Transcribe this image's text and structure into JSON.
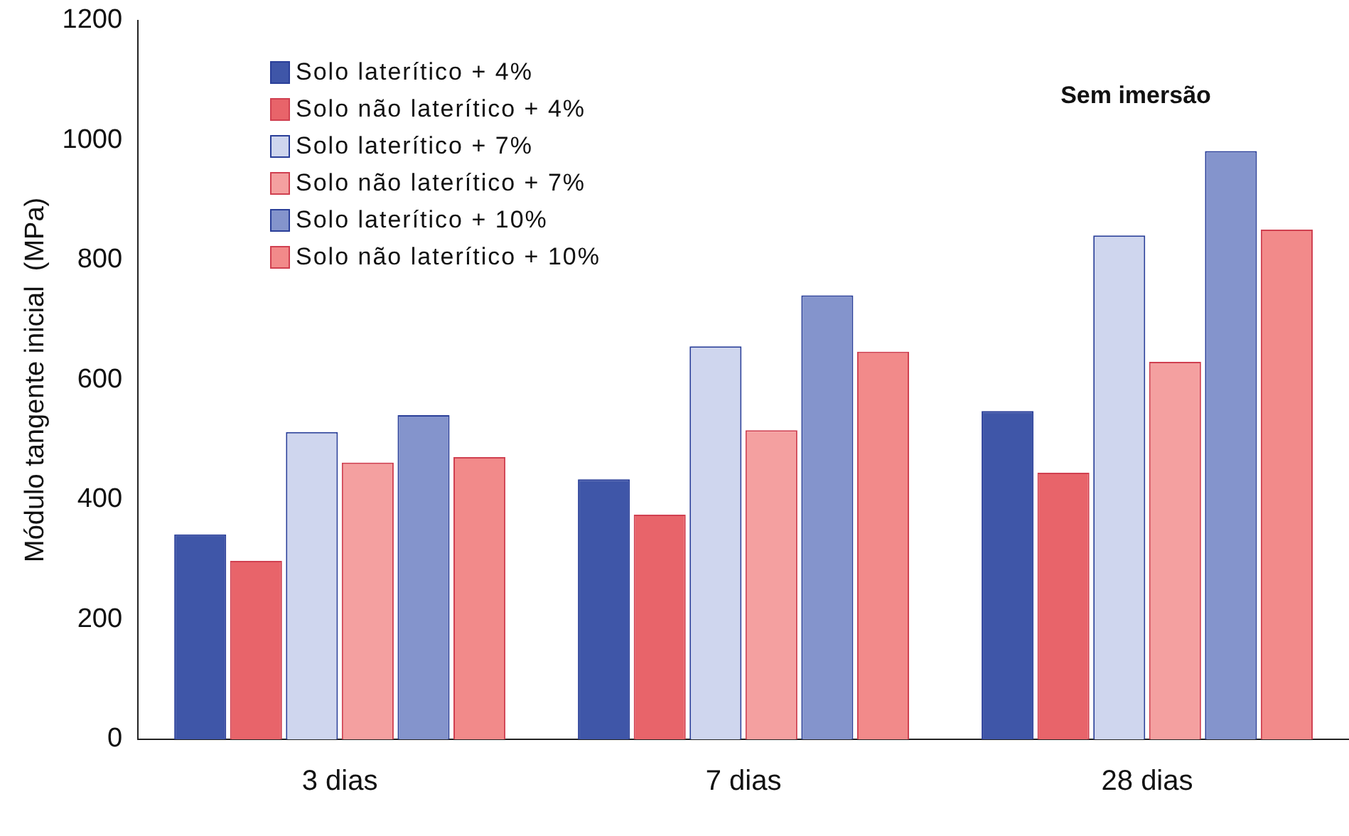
{
  "chart_data": {
    "type": "bar",
    "ylabel": "Módulo tangente inicial  (MPa)",
    "categories": [
      "3 dias",
      "7 dias",
      "28 dias"
    ],
    "series": [
      {
        "name": "Solo laterítico + 4%",
        "color": "#3f56a8",
        "values": [
          342,
          434,
          548
        ]
      },
      {
        "name": "Solo não laterítico + 4%",
        "color": "#e8646a",
        "values": [
          298,
          375,
          445
        ]
      },
      {
        "name": "Solo laterítico + 7%",
        "color": "#cfd6ee",
        "values": [
          513,
          656,
          841
        ]
      },
      {
        "name": "Solo não laterítico + 7%",
        "color": "#f4a0a0",
        "values": [
          462,
          516,
          630
        ]
      },
      {
        "name": "Solo laterítico + 10%",
        "color": "#8494cc",
        "values": [
          541,
          741,
          982
        ]
      },
      {
        "name": "Solo não laterítico + 10%",
        "color": "#f28a8a",
        "values": [
          471,
          647,
          851
        ]
      }
    ],
    "ylim": [
      0,
      1200
    ],
    "yticks": [
      0,
      200,
      400,
      600,
      800,
      1000,
      1200
    ],
    "grid": false,
    "legend": "top left",
    "annotations": [
      "Sem imersão"
    ]
  }
}
